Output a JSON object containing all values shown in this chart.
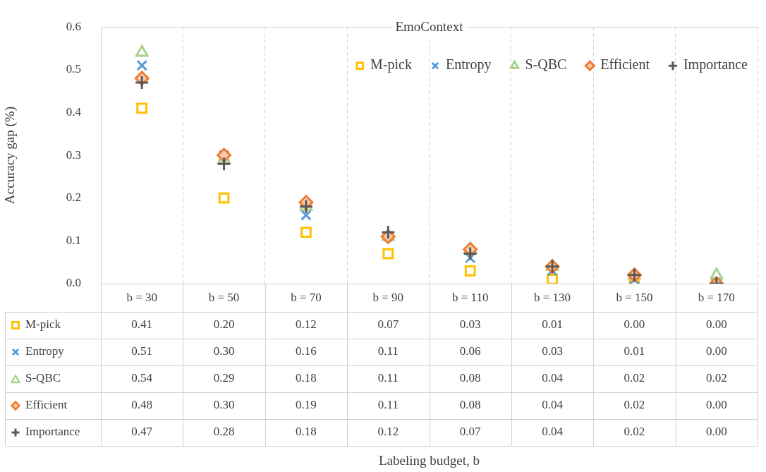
{
  "chart_data": {
    "type": "scatter",
    "title": "EmoContext",
    "ylabel": "Accuracy gap (%)",
    "annotations": [
      "Labeling budget, b"
    ],
    "categories": [
      "b = 30",
      "b = 50",
      "b = 70",
      "b = 90",
      "b = 110",
      "b = 130",
      "b = 150",
      "b = 170"
    ],
    "series": [
      {
        "name": "M-pick",
        "color": "#ffc000",
        "marker": "square",
        "values": [
          0.41,
          0.2,
          0.12,
          0.07,
          0.03,
          0.01,
          0.0,
          0.0
        ],
        "value_labels": [
          "0.41",
          "0.20",
          "0.12",
          "0.07",
          "0.03",
          "0.01",
          "0.00",
          "0.00"
        ]
      },
      {
        "name": "Entropy",
        "color": "#5b9bd5",
        "marker": "x",
        "values": [
          0.51,
          0.3,
          0.16,
          0.11,
          0.06,
          0.03,
          0.01,
          0.0
        ],
        "value_labels": [
          "0.51",
          "0.30",
          "0.16",
          "0.11",
          "0.06",
          "0.03",
          "0.01",
          "0.00"
        ]
      },
      {
        "name": "S-QBC",
        "color": "#a9d18e",
        "marker": "triangle",
        "values": [
          0.54,
          0.29,
          0.18,
          0.11,
          0.08,
          0.04,
          0.02,
          0.02
        ],
        "value_labels": [
          "0.54",
          "0.29",
          "0.18",
          "0.11",
          "0.08",
          "0.04",
          "0.02",
          "0.02"
        ]
      },
      {
        "name": "Efficient",
        "color": "#ed7d31",
        "marker": "diamond",
        "values": [
          0.48,
          0.3,
          0.19,
          0.11,
          0.08,
          0.04,
          0.02,
          0.0
        ],
        "value_labels": [
          "0.48",
          "0.30",
          "0.19",
          "0.11",
          "0.08",
          "0.04",
          "0.02",
          "0.00"
        ]
      },
      {
        "name": "Importance",
        "color": "#595959",
        "marker": "cross",
        "values": [
          0.47,
          0.28,
          0.18,
          0.12,
          0.07,
          0.04,
          0.02,
          0.0
        ],
        "value_labels": [
          "0.47",
          "0.28",
          "0.18",
          "0.12",
          "0.07",
          "0.04",
          "0.02",
          "0.00"
        ]
      }
    ],
    "ylim": [
      0,
      0.6
    ],
    "yticks": [
      {
        "value": 0,
        "label": "0.0"
      },
      0.1,
      0.2,
      0.3,
      0.4,
      0.5,
      0.6
    ],
    "grid": "x",
    "legend": "top right"
  }
}
